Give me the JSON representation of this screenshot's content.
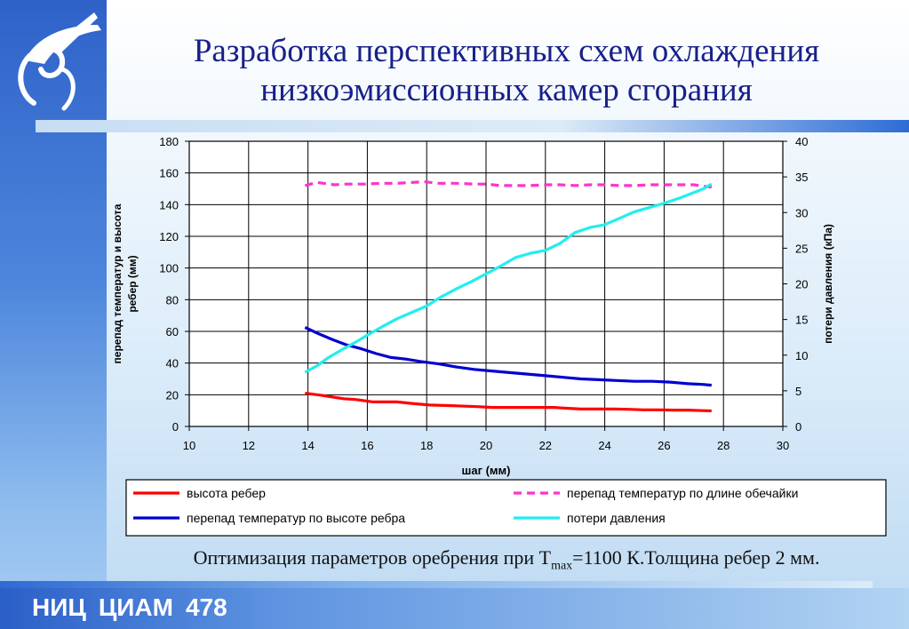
{
  "slide": {
    "title_line1": "Разработка перспективных схем охлаждения",
    "title_line2": "низкоэмиссионных камер сгорания",
    "caption_before": "Оптимизация параметров оребрения при T",
    "caption_sub": "max",
    "caption_after": "=1100 К.Толщина ребер 2 мм.",
    "footer_org1": "НИЦ",
    "footer_org2": "ЦИАМ",
    "footer_page": "478",
    "colors": {
      "title": "#17208a",
      "left_bar": "#2f62c9",
      "footer_text": "#ffffff"
    }
  },
  "chart_data": {
    "type": "line",
    "xlabel": "шаг (мм)",
    "ylabel_left": "перепад температур и высота ребер (мм)",
    "ylabel_right": "потери давления (кПа)",
    "xlim": [
      10,
      30
    ],
    "x_ticks": [
      10,
      12,
      14,
      16,
      18,
      20,
      22,
      24,
      26,
      28,
      30
    ],
    "ylim_left": [
      0,
      180
    ],
    "y_ticks_left": [
      0,
      20,
      40,
      60,
      80,
      100,
      120,
      140,
      160,
      180
    ],
    "ylim_right": [
      0,
      40
    ],
    "y_ticks_right": [
      0,
      5,
      10,
      15,
      20,
      25,
      30,
      35,
      40
    ],
    "grid": true,
    "legend_placement": "bottom",
    "series": [
      {
        "name": "высота ребер",
        "axis": "left",
        "color": "#ff0000",
        "dash": "solid",
        "x": [
          13.9,
          14.5,
          15.2,
          15.6,
          16.2,
          17.0,
          17.5,
          18.1,
          19.0,
          19.7,
          20.2,
          20.8,
          21.5,
          22.3,
          22.7,
          23.2,
          23.8,
          24.3,
          24.8,
          25.3,
          25.8,
          26.3,
          26.8,
          27.3,
          27.6
        ],
        "values": [
          21,
          19.5,
          17.5,
          17,
          15.5,
          15.5,
          14.5,
          13.5,
          13,
          12.5,
          12,
          12,
          12,
          12,
          11.5,
          11,
          11,
          11,
          10.8,
          10.5,
          10.5,
          10.3,
          10.3,
          10,
          9.8
        ]
      },
      {
        "name": "перепад температур по длине обечайки",
        "axis": "left",
        "color": "#ff33cc",
        "dash": "dashed",
        "x": [
          13.9,
          14.3,
          14.9,
          15.3,
          15.9,
          16.5,
          17.0,
          17.5,
          17.9,
          18.4,
          19.0,
          19.6,
          20.0,
          20.5,
          21.0,
          21.5,
          22.0,
          22.5,
          23.0,
          23.5,
          24.0,
          24.5,
          25.0,
          25.5,
          26.0,
          26.5,
          27.0,
          27.6
        ],
        "values": [
          152,
          154,
          152.5,
          153,
          153,
          153.5,
          153.5,
          154,
          154.5,
          153.5,
          153.5,
          153,
          153,
          152,
          152,
          152,
          152.5,
          152.5,
          152,
          152.5,
          152.5,
          152,
          152,
          152.5,
          152.5,
          152.5,
          152.5,
          151
        ]
      },
      {
        "name": "перепад температур по высоте ребра",
        "axis": "left",
        "color": "#0000d0",
        "dash": "solid",
        "x": [
          13.9,
          14.3,
          14.8,
          15.3,
          15.8,
          16.3,
          16.8,
          17.3,
          17.8,
          18.4,
          19.0,
          19.6,
          20.2,
          20.8,
          21.4,
          22.0,
          22.6,
          23.2,
          23.8,
          24.4,
          25.0,
          25.6,
          26.2,
          26.8,
          27.3,
          27.6
        ],
        "values": [
          62.5,
          59,
          55,
          51.5,
          49,
          46,
          43.5,
          42.5,
          41,
          39.5,
          37.5,
          36,
          35,
          34,
          33,
          32,
          31,
          30,
          29.5,
          29,
          28.5,
          28.5,
          28,
          27,
          26.5,
          26
        ]
      },
      {
        "name": "потери давления",
        "axis": "right",
        "color": "#22eeee",
        "dash": "solid",
        "x": [
          13.9,
          14.3,
          14.7,
          15.2,
          15.6,
          16.0,
          16.5,
          17.0,
          17.5,
          18.0,
          18.5,
          19.0,
          19.5,
          20.0,
          20.5,
          21.0,
          21.5,
          22.0,
          22.5,
          23.0,
          23.5,
          24.0,
          24.5,
          25.0,
          25.5,
          26.0,
          26.5,
          27.0,
          27.3,
          27.6
        ],
        "values": [
          7.6,
          8.5,
          9.7,
          10.9,
          11.8,
          12.8,
          14.0,
          15.1,
          16.0,
          16.9,
          18.2,
          19.3,
          20.3,
          21.4,
          22.5,
          23.7,
          24.3,
          24.7,
          25.7,
          27.2,
          27.9,
          28.3,
          29.2,
          30.1,
          30.7,
          31.3,
          32.0,
          32.8,
          33.3,
          34.0
        ]
      }
    ]
  }
}
